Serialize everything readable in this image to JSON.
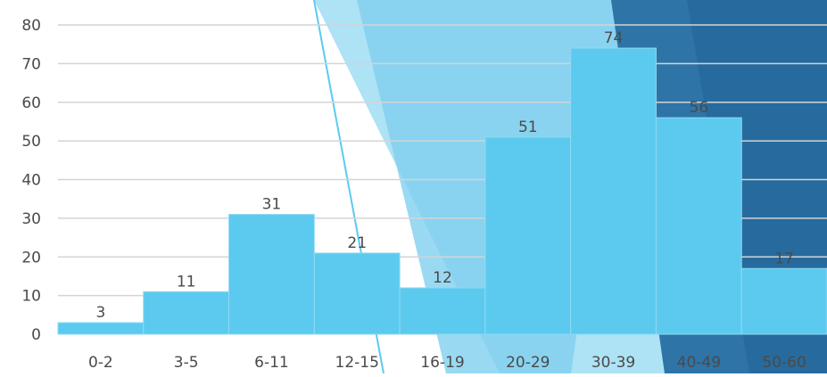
{
  "chart_data": {
    "type": "bar",
    "categories": [
      "0-2",
      "3-5",
      "6-11",
      "12-15",
      "16-19",
      "20-29",
      "30-39",
      "40-49",
      "50-60"
    ],
    "values": [
      3,
      11,
      31,
      21,
      12,
      51,
      74,
      56,
      17
    ],
    "ylim": [
      0,
      80
    ],
    "yticks": [
      0,
      10,
      20,
      30,
      40,
      50,
      60,
      70,
      80
    ],
    "grid": true,
    "bar_color": "#5ccaef"
  },
  "decor": {
    "shape_light": "#aee2f5",
    "shape_mid": "#7fd0ef",
    "shape_dark": "#2e74a6",
    "shape_darker": "#23659a"
  }
}
